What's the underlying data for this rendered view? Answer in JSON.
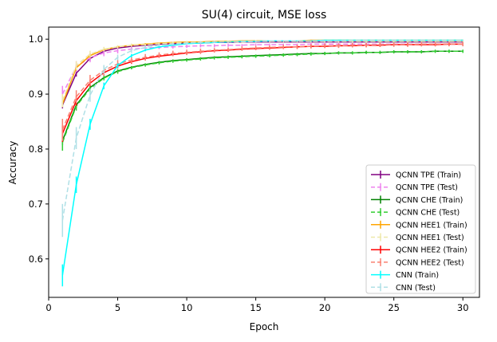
{
  "chart_data": {
    "type": "line",
    "title": "SU(4) circuit, MSE loss",
    "xlabel": "Epoch",
    "ylabel": "Accuracy",
    "xlim": [
      0,
      31.2
    ],
    "ylim": [
      0.53,
      1.022
    ],
    "xticks": [
      0,
      5,
      10,
      15,
      20,
      25,
      30
    ],
    "yticks": [
      0.6,
      0.7,
      0.8,
      0.9,
      1.0
    ],
    "ytick_labels": [
      "0.6",
      "0.7",
      "0.8",
      "0.9",
      "1.0"
    ],
    "legend_position": "bottom-right",
    "x": [
      1,
      2,
      3,
      4,
      5,
      6,
      7,
      8,
      9,
      10,
      11,
      12,
      13,
      14,
      15,
      16,
      17,
      18,
      19,
      20,
      21,
      22,
      23,
      24,
      25,
      26,
      27,
      28,
      29,
      30
    ],
    "series": [
      {
        "name": "QCNN TPE (Train)",
        "color": "#800080",
        "dash": false,
        "values": [
          0.88,
          0.938,
          0.965,
          0.978,
          0.984,
          0.987,
          0.989,
          0.991,
          0.992,
          0.993,
          0.993,
          0.994,
          0.994,
          0.995,
          0.995,
          0.995,
          0.995,
          0.995,
          0.995,
          0.995,
          0.995,
          0.995,
          0.995,
          0.995,
          0.995,
          0.995,
          0.995,
          0.995,
          0.995,
          0.995
        ],
        "err": [
          0.006,
          0.006,
          0.004,
          0.003,
          0.002,
          0.002,
          0.002,
          0.002,
          0.001,
          0.001,
          0.001,
          0.001,
          0.001,
          0.001,
          0.001,
          0.001,
          0.001,
          0.001,
          0.001,
          0.001,
          0.001,
          0.001,
          0.001,
          0.001,
          0.001,
          0.001,
          0.001,
          0.001,
          0.001,
          0.001
        ]
      },
      {
        "name": "QCNN TPE (Test)",
        "color": "#ee82ee",
        "dash": true,
        "values": [
          0.9,
          0.95,
          0.966,
          0.975,
          0.979,
          0.982,
          0.984,
          0.985,
          0.986,
          0.987,
          0.988,
          0.988,
          0.989,
          0.989,
          0.99,
          0.99,
          0.99,
          0.99,
          0.991,
          0.991,
          0.991,
          0.991,
          0.991,
          0.991,
          0.991,
          0.991,
          0.991,
          0.991,
          0.991,
          0.991
        ],
        "err": [
          0.015,
          0.01,
          0.008,
          0.006,
          0.005,
          0.004,
          0.004,
          0.003,
          0.003,
          0.003,
          0.003,
          0.003,
          0.003,
          0.002,
          0.002,
          0.002,
          0.002,
          0.002,
          0.002,
          0.002,
          0.002,
          0.002,
          0.002,
          0.002,
          0.002,
          0.002,
          0.002,
          0.002,
          0.002,
          0.002
        ]
      },
      {
        "name": "QCNN CHE (Train)",
        "color": "#008000",
        "dash": false,
        "values": [
          0.815,
          0.88,
          0.912,
          0.93,
          0.942,
          0.949,
          0.954,
          0.958,
          0.961,
          0.963,
          0.965,
          0.967,
          0.968,
          0.969,
          0.97,
          0.971,
          0.972,
          0.973,
          0.974,
          0.974,
          0.975,
          0.975,
          0.976,
          0.976,
          0.977,
          0.977,
          0.977,
          0.978,
          0.978,
          0.978
        ],
        "err": [
          0.008,
          0.005,
          0.004,
          0.003,
          0.003,
          0.002,
          0.002,
          0.002,
          0.002,
          0.002,
          0.002,
          0.002,
          0.002,
          0.002,
          0.002,
          0.002,
          0.002,
          0.002,
          0.002,
          0.002,
          0.002,
          0.002,
          0.002,
          0.002,
          0.002,
          0.002,
          0.002,
          0.002,
          0.002,
          0.002
        ]
      },
      {
        "name": "QCNN CHE (Test)",
        "color": "#32cd32",
        "dash": true,
        "values": [
          0.812,
          0.878,
          0.91,
          0.929,
          0.941,
          0.948,
          0.953,
          0.957,
          0.96,
          0.962,
          0.964,
          0.966,
          0.967,
          0.968,
          0.969,
          0.97,
          0.971,
          0.972,
          0.973,
          0.974,
          0.975,
          0.975,
          0.976,
          0.976,
          0.977,
          0.977,
          0.977,
          0.978,
          0.978,
          0.978
        ],
        "err": [
          0.015,
          0.008,
          0.006,
          0.004,
          0.004,
          0.003,
          0.003,
          0.003,
          0.003,
          0.003,
          0.003,
          0.003,
          0.003,
          0.003,
          0.003,
          0.003,
          0.003,
          0.003,
          0.003,
          0.003,
          0.003,
          0.003,
          0.003,
          0.003,
          0.003,
          0.003,
          0.003,
          0.003,
          0.003,
          0.003
        ]
      },
      {
        "name": "QCNN HEE1 (Train)",
        "color": "#ffa500",
        "dash": false,
        "values": [
          0.882,
          0.948,
          0.97,
          0.981,
          0.986,
          0.989,
          0.991,
          0.993,
          0.994,
          0.995,
          0.995,
          0.996,
          0.996,
          0.997,
          0.997,
          0.997,
          0.997,
          0.997,
          0.998,
          0.998,
          0.998,
          0.998,
          0.998,
          0.998,
          0.998,
          0.998,
          0.998,
          0.998,
          0.998,
          0.998
        ],
        "err": [
          0.005,
          0.005,
          0.004,
          0.003,
          0.002,
          0.002,
          0.002,
          0.001,
          0.001,
          0.001,
          0.001,
          0.001,
          0.001,
          0.001,
          0.001,
          0.001,
          0.001,
          0.001,
          0.001,
          0.001,
          0.001,
          0.001,
          0.001,
          0.001,
          0.001,
          0.001,
          0.001,
          0.001,
          0.001,
          0.001
        ]
      },
      {
        "name": "QCNN HEE1 (Test)",
        "color": "#eee8aa",
        "dash": true,
        "values": [
          0.888,
          0.952,
          0.973,
          0.982,
          0.986,
          0.989,
          0.99,
          0.992,
          0.993,
          0.994,
          0.994,
          0.995,
          0.995,
          0.995,
          0.996,
          0.996,
          0.996,
          0.996,
          0.996,
          0.996,
          0.996,
          0.996,
          0.996,
          0.996,
          0.996,
          0.996,
          0.996,
          0.996,
          0.996,
          0.996
        ],
        "err": [
          0.012,
          0.008,
          0.006,
          0.004,
          0.003,
          0.003,
          0.002,
          0.002,
          0.002,
          0.002,
          0.002,
          0.002,
          0.002,
          0.002,
          0.002,
          0.002,
          0.002,
          0.002,
          0.002,
          0.002,
          0.002,
          0.002,
          0.002,
          0.002,
          0.002,
          0.002,
          0.002,
          0.002,
          0.002,
          0.002
        ]
      },
      {
        "name": "QCNN HEE2 (Train)",
        "color": "#ff0000",
        "dash": false,
        "values": [
          0.828,
          0.888,
          0.92,
          0.939,
          0.951,
          0.959,
          0.965,
          0.969,
          0.972,
          0.975,
          0.977,
          0.979,
          0.98,
          0.982,
          0.983,
          0.984,
          0.985,
          0.986,
          0.987,
          0.987,
          0.988,
          0.988,
          0.989,
          0.989,
          0.99,
          0.99,
          0.99,
          0.99,
          0.991,
          0.991
        ],
        "err": [
          0.015,
          0.009,
          0.006,
          0.005,
          0.004,
          0.004,
          0.004,
          0.003,
          0.003,
          0.003,
          0.003,
          0.003,
          0.003,
          0.003,
          0.003,
          0.003,
          0.003,
          0.003,
          0.003,
          0.003,
          0.003,
          0.003,
          0.003,
          0.003,
          0.003,
          0.003,
          0.003,
          0.003,
          0.003,
          0.003
        ]
      },
      {
        "name": "QCNN HEE2 (Test)",
        "color": "#fa8072",
        "dash": true,
        "values": [
          0.835,
          0.895,
          0.925,
          0.943,
          0.955,
          0.962,
          0.967,
          0.971,
          0.974,
          0.976,
          0.978,
          0.98,
          0.981,
          0.983,
          0.984,
          0.985,
          0.986,
          0.986,
          0.987,
          0.988,
          0.988,
          0.989,
          0.989,
          0.99,
          0.99,
          0.99,
          0.991,
          0.991,
          0.991,
          0.991
        ],
        "err": [
          0.02,
          0.012,
          0.01,
          0.008,
          0.007,
          0.006,
          0.006,
          0.005,
          0.005,
          0.005,
          0.005,
          0.004,
          0.004,
          0.004,
          0.004,
          0.004,
          0.004,
          0.004,
          0.004,
          0.004,
          0.004,
          0.004,
          0.004,
          0.004,
          0.004,
          0.004,
          0.004,
          0.004,
          0.004,
          0.004
        ]
      },
      {
        "name": "CNN (Train)",
        "color": "#00ffff",
        "dash": false,
        "values": [
          0.57,
          0.735,
          0.845,
          0.915,
          0.952,
          0.97,
          0.98,
          0.986,
          0.989,
          0.992,
          0.993,
          0.994,
          0.995,
          0.996,
          0.996,
          0.997,
          0.997,
          0.997,
          0.997,
          0.998,
          0.998,
          0.998,
          0.998,
          0.998,
          0.998,
          0.998,
          0.998,
          0.998,
          0.998,
          0.998
        ],
        "err": [
          0.02,
          0.015,
          0.01,
          0.006,
          0.004,
          0.003,
          0.002,
          0.002,
          0.001,
          0.001,
          0.001,
          0.001,
          0.001,
          0.001,
          0.001,
          0.001,
          0.001,
          0.001,
          0.001,
          0.001,
          0.001,
          0.001,
          0.001,
          0.001,
          0.001,
          0.001,
          0.001,
          0.001,
          0.001,
          0.001
        ]
      },
      {
        "name": "CNN (Test)",
        "color": "#b0e0e6",
        "dash": true,
        "values": [
          0.67,
          0.82,
          0.898,
          0.945,
          0.967,
          0.979,
          0.985,
          0.989,
          0.991,
          0.993,
          0.994,
          0.995,
          0.995,
          0.996,
          0.996,
          0.997,
          0.997,
          0.997,
          0.997,
          0.997,
          0.997,
          0.998,
          0.998,
          0.998,
          0.998,
          0.998,
          0.998,
          0.998,
          0.998,
          0.998
        ],
        "err": [
          0.03,
          0.02,
          0.012,
          0.008,
          0.005,
          0.004,
          0.003,
          0.002,
          0.002,
          0.002,
          0.002,
          0.002,
          0.001,
          0.001,
          0.001,
          0.001,
          0.001,
          0.001,
          0.001,
          0.001,
          0.001,
          0.001,
          0.001,
          0.001,
          0.001,
          0.001,
          0.001,
          0.001,
          0.001,
          0.001
        ]
      }
    ]
  }
}
